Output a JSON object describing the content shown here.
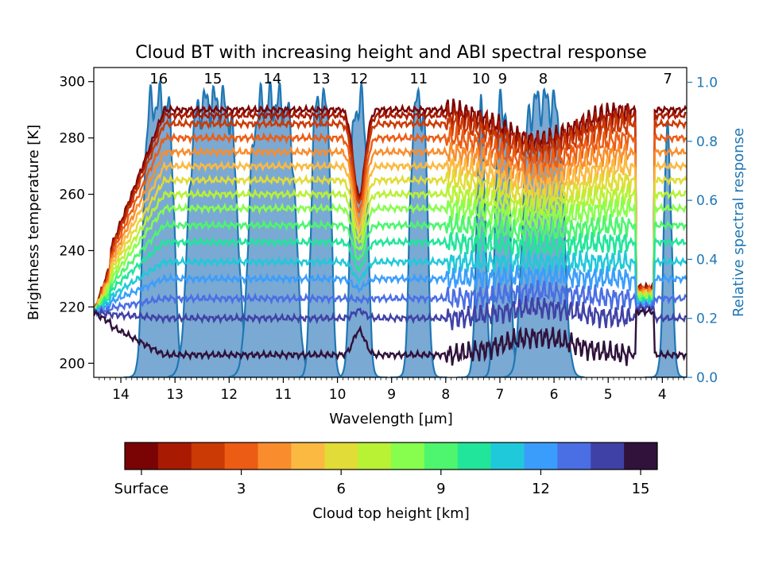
{
  "chart_data": {
    "type": "line",
    "title": "Cloud BT with increasing height and ABI spectral response",
    "xlabel": "Wavelength [μm]",
    "ylabel_left": "Brightness temperature [K]",
    "ylabel_right": "Relative spectral response",
    "x_axis": {
      "range": [
        14.5,
        3.55
      ],
      "ticks": [
        14,
        13,
        12,
        11,
        10,
        9,
        8,
        7,
        6,
        5,
        4
      ],
      "direction": "decreasing"
    },
    "y_left": {
      "range": [
        195,
        305
      ],
      "ticks": [
        200,
        220,
        240,
        260,
        280,
        300
      ]
    },
    "y_right": {
      "range": [
        0,
        1.05
      ],
      "ticks": [
        "0.0",
        "0.2",
        "0.4",
        "0.6",
        "0.8",
        "1.0"
      ],
      "color": "#1f77b4"
    },
    "grid": false,
    "bands": [
      {
        "label": "16",
        "center": 13.3,
        "width": 0.6
      },
      {
        "label": "15",
        "center": 12.3,
        "width": 0.95
      },
      {
        "label": "14",
        "center": 11.2,
        "width": 0.9
      },
      {
        "label": "13",
        "center": 10.3,
        "width": 0.4
      },
      {
        "label": "12",
        "center": 9.6,
        "width": 0.35
      },
      {
        "label": "11",
        "center": 8.5,
        "width": 0.35
      },
      {
        "label": "10",
        "center": 7.35,
        "width": 0.18
      },
      {
        "label": "9",
        "center": 6.95,
        "width": 0.3
      },
      {
        "label": "8",
        "center": 6.2,
        "width": 0.8
      },
      {
        "label": "7",
        "center": 3.9,
        "width": 0.15
      }
    ],
    "series_heights_km": [
      0,
      1,
      2,
      3,
      4,
      5,
      6,
      7,
      8,
      9,
      10,
      11,
      12,
      13,
      14,
      15
    ],
    "series": [
      {
        "height": 0,
        "window_bt": 290,
        "color": "#7a0403"
      },
      {
        "height": 1,
        "window_bt": 288,
        "color": "#a81a02"
      },
      {
        "height": 2,
        "window_bt": 285,
        "color": "#cb3a05"
      },
      {
        "height": 3,
        "window_bt": 280,
        "color": "#ec5c14"
      },
      {
        "height": 4,
        "window_bt": 275,
        "color": "#f98d2d"
      },
      {
        "height": 5,
        "window_bt": 270,
        "color": "#fbb941"
      },
      {
        "height": 6,
        "window_bt": 265,
        "color": "#e1dc37"
      },
      {
        "height": 7,
        "window_bt": 260,
        "color": "#b9f135"
      },
      {
        "height": 8,
        "window_bt": 255,
        "color": "#87fe4d"
      },
      {
        "height": 9,
        "window_bt": 249,
        "color": "#4ef56e"
      },
      {
        "height": 10,
        "window_bt": 243,
        "color": "#21e59a"
      },
      {
        "height": 11,
        "window_bt": 236,
        "color": "#20c9d9"
      },
      {
        "height": 12,
        "window_bt": 230,
        "color": "#3b9dfb"
      },
      {
        "height": 13,
        "window_bt": 223,
        "color": "#4a6ee4"
      },
      {
        "height": 14,
        "window_bt": 216,
        "color": "#4041a6"
      },
      {
        "height": 15,
        "window_bt": 203,
        "color": "#30123b"
      }
    ],
    "colorbar": {
      "label": "Cloud top height [km]",
      "ticks": [
        "Surface",
        "3",
        "6",
        "9",
        "12",
        "15"
      ],
      "colors": [
        "#7a0403",
        "#a81a02",
        "#cb3a05",
        "#ec5c14",
        "#f98d2d",
        "#fbb941",
        "#e1dc37",
        "#b9f135",
        "#87fe4d",
        "#4ef56e",
        "#21e59a",
        "#20c9d9",
        "#3b9dfb",
        "#4a6ee4",
        "#4041a6",
        "#30123b"
      ]
    },
    "srf_fill_color": "#7aa9d3",
    "srf_line_color": "#1f77b4"
  }
}
